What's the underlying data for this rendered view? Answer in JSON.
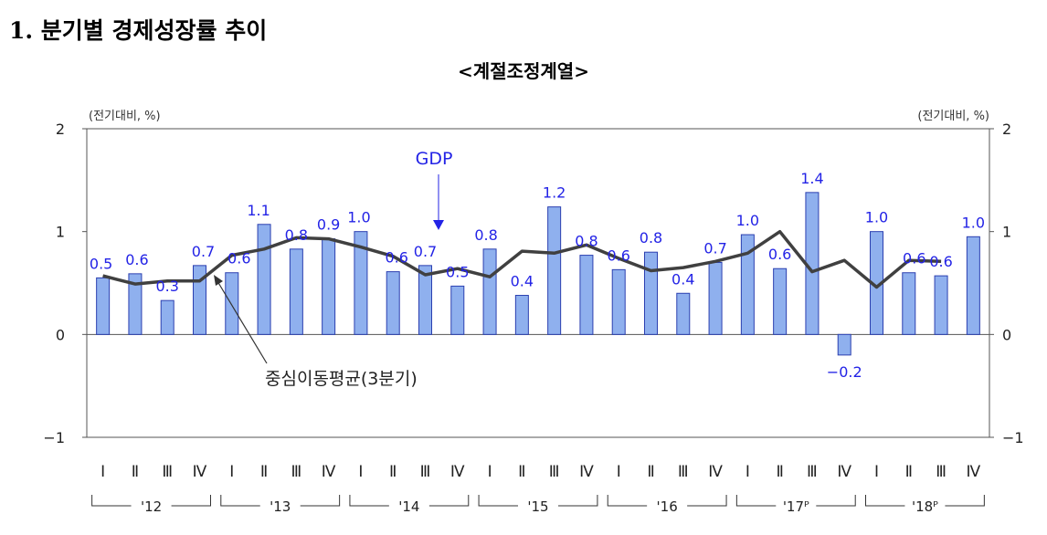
{
  "heading": "1. 분기별 경제성장률 추이",
  "subtitle": "<계절조정계열>",
  "chart_data": {
    "type": "bar",
    "unit_left": "(전기대비, %)",
    "unit_right": "(전기대비, %)",
    "ylim": [
      -1,
      2
    ],
    "yticks": [
      2,
      1,
      0,
      -1
    ],
    "quarter_labels": [
      "Ⅰ",
      "Ⅱ",
      "Ⅲ",
      "Ⅳ",
      "Ⅰ",
      "Ⅱ",
      "Ⅲ",
      "Ⅳ",
      "Ⅰ",
      "Ⅱ",
      "Ⅲ",
      "Ⅳ",
      "Ⅰ",
      "Ⅱ",
      "Ⅲ",
      "Ⅳ",
      "Ⅰ",
      "Ⅱ",
      "Ⅲ",
      "Ⅳ",
      "Ⅰ",
      "Ⅱ",
      "Ⅲ",
      "Ⅳ",
      "Ⅰ",
      "Ⅱ",
      "Ⅲ",
      "Ⅳ"
    ],
    "year_labels": [
      "'12",
      "'13",
      "'14",
      "'15",
      "'16",
      "'17ᴾ",
      "'18ᴾ"
    ],
    "series": [
      {
        "name": "GDP",
        "type": "bar",
        "color": "#8fb0ee",
        "values": [
          0.55,
          0.59,
          0.33,
          0.67,
          0.6,
          1.07,
          0.83,
          0.93,
          1.0,
          0.61,
          0.67,
          0.47,
          0.83,
          0.38,
          1.24,
          0.77,
          0.63,
          0.8,
          0.4,
          0.7,
          0.97,
          0.64,
          1.38,
          -0.2,
          1.0,
          0.6,
          0.57,
          0.95
        ]
      },
      {
        "name": "중심이동평균(3분기)",
        "type": "line",
        "color": "#404040",
        "values": [
          0.57,
          0.49,
          0.52,
          0.52,
          0.77,
          0.83,
          0.94,
          0.93,
          0.85,
          0.76,
          0.58,
          0.64,
          0.56,
          0.81,
          0.79,
          0.87,
          0.74,
          0.62,
          0.65,
          0.71,
          0.79,
          1.0,
          0.61,
          0.72,
          0.46,
          0.72,
          0.71,
          null
        ]
      }
    ],
    "data_labels": [
      "0.5",
      "0.6",
      "0.3",
      "0.7",
      "0.6",
      "1.1",
      "0.8",
      "0.9",
      "1.0",
      "0.6",
      "0.7",
      "0.5",
      "0.8",
      "0.4",
      "1.2",
      "0.8",
      "0.6",
      "0.8",
      "0.4",
      "0.7",
      "1.0",
      "0.6",
      "1.4",
      "-0.2",
      "1.0",
      "0.6",
      "0.6",
      "1.0"
    ],
    "annotations": {
      "gdp_label": "GDP",
      "ma_label": "중심이동평균(3분기)"
    },
    "colors": {
      "label_text": "#2323e6",
      "bar_stroke": "#2b3fb0",
      "arrow": "#2323e6"
    }
  }
}
